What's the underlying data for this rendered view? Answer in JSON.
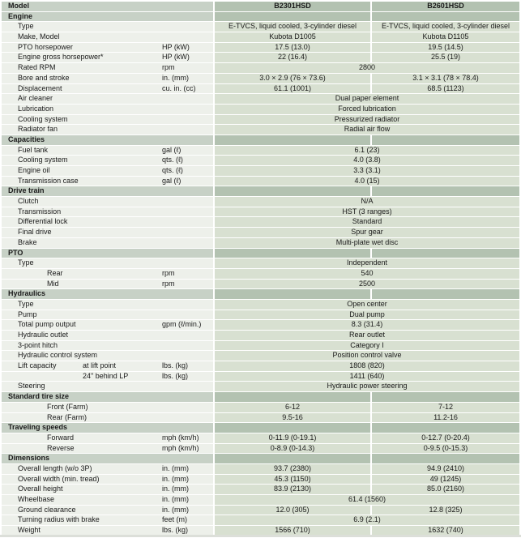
{
  "table": {
    "header": {
      "model_label": "Model",
      "columns": [
        "B2301HSD",
        "B2601HSD"
      ]
    },
    "sections": [
      {
        "title": "Engine",
        "rows": [
          {
            "label": "Type",
            "values": {
              "b2301hsd": "E-TVCS, liquid cooled, 3-cylinder diesel",
              "b2601hsd": "E-TVCS, liquid cooled, 3-cylinder diesel"
            }
          },
          {
            "label": "Make, Model",
            "values": {
              "b2301hsd": "Kubota D1005",
              "b2601hsd": "Kubota D1105"
            }
          },
          {
            "label": "PTO horsepower",
            "unit": "HP (kW)",
            "values": {
              "b2301hsd": "17.5 (13.0)",
              "b2601hsd": "19.5 (14.5)"
            }
          },
          {
            "label": "Engine gross horsepower*",
            "unit": "HP (kW)",
            "values": {
              "b2301hsd": "22 (16.4)",
              "b2601hsd": "25.5 (19)"
            }
          },
          {
            "label": "Rated RPM",
            "unit": "rpm",
            "values": {
              "span": "2800"
            }
          },
          {
            "label": "Bore and stroke",
            "unit": "in. (mm)",
            "values": {
              "b2301hsd": "3.0 × 2.9 (76 × 73.6)",
              "b2601hsd": "3.1 × 3.1 (78 × 78.4)"
            }
          },
          {
            "label": "Displacement",
            "unit": "cu. in. (cc)",
            "values": {
              "b2301hsd": "61.1 (1001)",
              "b2601hsd": "68.5 (1123)"
            }
          },
          {
            "label": "Air cleaner",
            "values": {
              "span": "Dual paper element"
            }
          },
          {
            "label": "Lubrication",
            "values": {
              "span": "Forced lubrication"
            }
          },
          {
            "label": "Cooling system",
            "values": {
              "span": "Pressurized radiator"
            }
          },
          {
            "label": "Radiator fan",
            "values": {
              "span": "Radial air flow"
            }
          }
        ]
      },
      {
        "title": "Capacities",
        "rows": [
          {
            "label": "Fuel tank",
            "unit": "gal (ℓ)",
            "values": {
              "span": "6.1 (23)"
            }
          },
          {
            "label": "Cooling system",
            "unit": "qts. (ℓ)",
            "values": {
              "span": "4.0 (3.8)"
            }
          },
          {
            "label": "Engine oil",
            "unit": "qts. (ℓ)",
            "values": {
              "span": "3.3 (3.1)"
            }
          },
          {
            "label": "Transmission case",
            "unit": "gal (ℓ)",
            "values": {
              "span": "4.0 (15)"
            }
          }
        ]
      },
      {
        "title": "Drive train",
        "rows": [
          {
            "label": "Clutch",
            "values": {
              "span": "N/A"
            }
          },
          {
            "label": "Transmission",
            "values": {
              "span": "HST (3 ranges)"
            }
          },
          {
            "label": "Differential lock",
            "values": {
              "span": "Standard"
            }
          },
          {
            "label": "Final drive",
            "values": {
              "span": "Spur gear"
            }
          },
          {
            "label": "Brake",
            "values": {
              "span": "Multi-plate wet disc"
            }
          }
        ]
      },
      {
        "title": "PTO",
        "rows": [
          {
            "label": "Type",
            "values": {
              "span": "Independent"
            }
          },
          {
            "label": "Rear",
            "indent": 2,
            "unit": "rpm",
            "values": {
              "span": "540"
            }
          },
          {
            "label": "Mid",
            "indent": 2,
            "unit": "rpm",
            "values": {
              "span": "2500"
            }
          }
        ]
      },
      {
        "title": "Hydraulics",
        "rows": [
          {
            "label": "Type",
            "values": {
              "span": "Open center"
            }
          },
          {
            "label": "Pump",
            "values": {
              "span": "Dual pump"
            }
          },
          {
            "label": "Total pump output",
            "unit": "gpm (ℓ/min.)",
            "values": {
              "span": "8.3 (31.4)"
            }
          },
          {
            "label": "Hydraulic outlet",
            "values": {
              "span": "Rear outlet"
            }
          },
          {
            "label": "3-point hitch",
            "values": {
              "span": "Category I"
            }
          },
          {
            "label": "Hydraulic control system",
            "values": {
              "span": "Position control valve"
            }
          },
          {
            "label": "Lift capacity",
            "sublabel": "at lift point",
            "unit": "lbs. (kg)",
            "values": {
              "span": "1808 (820)"
            }
          },
          {
            "label": "",
            "sublabel": "24\" behind LP",
            "unit": "lbs. (kg)",
            "values": {
              "span": "1411 (640)"
            }
          },
          {
            "label": "Steering",
            "values": {
              "span": "Hydraulic power steering"
            }
          }
        ]
      },
      {
        "title": "Standard tire size",
        "rows": [
          {
            "label": "Front (Farm)",
            "indent": 2,
            "values": {
              "b2301hsd": "6-12",
              "b2601hsd": "7-12"
            }
          },
          {
            "label": "Rear (Farm)",
            "indent": 2,
            "values": {
              "b2301hsd": "9.5-16",
              "b2601hsd": "11.2-16"
            }
          }
        ]
      },
      {
        "title": "Traveling speeds",
        "rows": [
          {
            "label": "Forward",
            "indent": 2,
            "unit": "mph (km/h)",
            "values": {
              "b2301hsd": "0-11.9 (0-19.1)",
              "b2601hsd": "0-12.7 (0-20.4)"
            }
          },
          {
            "label": "Reverse",
            "indent": 2,
            "unit": "mph (km/h)",
            "values": {
              "b2301hsd": "0-8.9 (0-14.3)",
              "b2601hsd": "0-9.5 (0-15.3)"
            }
          }
        ]
      },
      {
        "title": "Dimensions",
        "rows": [
          {
            "label": "Overall length (w/o 3P)",
            "unit": "in. (mm)",
            "values": {
              "b2301hsd": "93.7 (2380)",
              "b2601hsd": "94.9 (2410)"
            }
          },
          {
            "label": "Overall width (min. tread)",
            "unit": "in. (mm)",
            "values": {
              "b2301hsd": "45.3 (1150)",
              "b2601hsd": "49 (1245)"
            }
          },
          {
            "label": "Overall height",
            "unit": "in. (mm)",
            "values": {
              "b2301hsd": "83.9 (2130)",
              "b2601hsd": "85.0 (2160)"
            }
          },
          {
            "label": "Wheelbase",
            "unit": "in. (mm)",
            "values": {
              "span": "61.4 (1560)"
            }
          },
          {
            "label": "Ground clearance",
            "unit": "in. (mm)",
            "values": {
              "b2301hsd": "12.0 (305)",
              "b2601hsd": "12.8 (325)"
            }
          },
          {
            "label": "Turning radius with brake",
            "unit": "feet (m)",
            "values": {
              "span": "6.9 (2.1)"
            }
          },
          {
            "label": "Weight",
            "unit": "lbs. (kg)",
            "values": {
              "b2301hsd": "1566 (710)",
              "b2601hsd": "1632 (740)"
            }
          }
        ]
      }
    ]
  },
  "colors": {
    "page_bg": "#ffffff",
    "section_bg_left": "#c7d1c6",
    "section_bg_right": "#b3c2b1",
    "row_bg_left": "#edf0ea",
    "row_bg_right": "#d8e0d1",
    "edge": "#dcdfd9",
    "text": "#1a1a1a"
  }
}
